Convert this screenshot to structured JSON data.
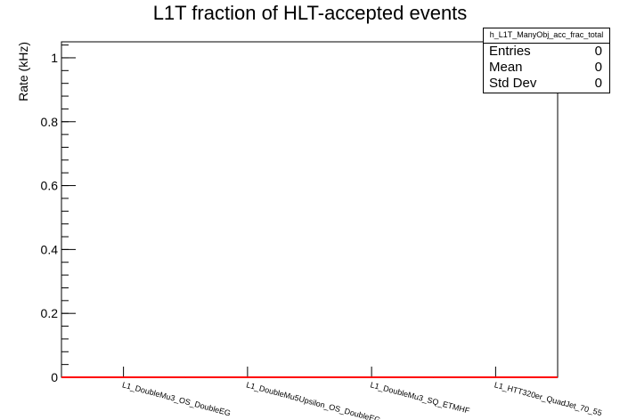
{
  "chart_data": {
    "type": "bar",
    "title": "L1T fraction of HLT-accepted events",
    "ylabel": "Rate (kHz)",
    "xlabel": "",
    "ylim": [
      0,
      1.05
    ],
    "yticks": [
      "0",
      "0.2",
      "0.4",
      "0.6",
      "0.8",
      "1"
    ],
    "categories": [
      "L1_DoubleMu3_OS_DoubleEG",
      "L1_DoubleMu5Upsilon_OS_DoubleEG",
      "L1_DoubleMu3_SQ_ETMHF",
      "L1_HTT320er_QuadJet_70_55"
    ],
    "values": [
      0,
      0,
      0,
      0
    ],
    "line_color": "#ff0000",
    "grid": false,
    "stats": {
      "name": "h_L1T_ManyObj_acc_frac_total",
      "rows": [
        {
          "label": "Entries",
          "value": "0"
        },
        {
          "label": "Mean",
          "value": "0"
        },
        {
          "label": "Std Dev",
          "value": "0"
        }
      ]
    }
  }
}
